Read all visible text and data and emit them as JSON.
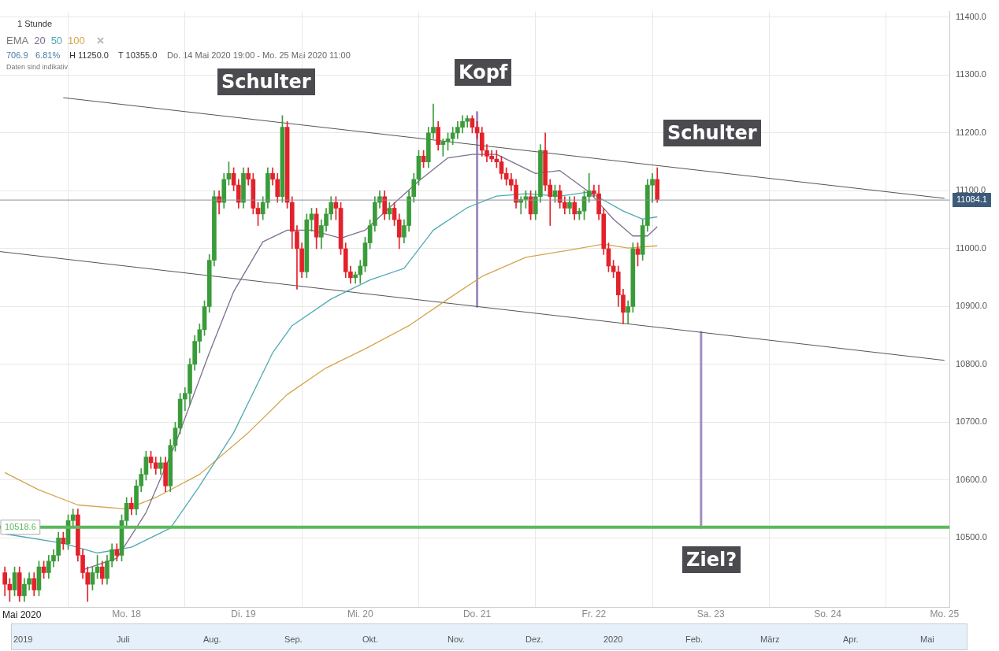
{
  "chart_data": {
    "type": "candlestick",
    "x": [
      "2020-05-16T23:00",
      "2020-05-17T00:00",
      "2020-05-17T01:00",
      "2020-05-17T02:00",
      "2020-05-17T03:00",
      "2020-05-17T04:00",
      "2020-05-17T05:00",
      "2020-05-17T06:00",
      "2020-05-17T07:00",
      "2020-05-17T08:00",
      "2020-05-17T09:00",
      "2020-05-17T10:00",
      "2020-05-17T11:00",
      "2020-05-17T12:00",
      "2020-05-17T13:00",
      "2020-05-17T14:00",
      "2020-05-17T15:00",
      "2020-05-17T16:00",
      "2020-05-17T17:00",
      "2020-05-17T18:00",
      "2020-05-17T19:00",
      "2020-05-17T20:00",
      "2020-05-17T21:00",
      "2020-05-17T22:00",
      "2020-05-17T23:00",
      "2020-05-18T00:00",
      "2020-05-18T01:00",
      "2020-05-18T02:00",
      "2020-05-18T03:00",
      "2020-05-18T04:00",
      "2020-05-18T05:00",
      "2020-05-18T06:00",
      "2020-05-18T07:00",
      "2020-05-18T08:00",
      "2020-05-18T09:00",
      "2020-05-18T10:00",
      "2020-05-18T11:00",
      "2020-05-18T12:00",
      "2020-05-18T13:00",
      "2020-05-18T14:00",
      "2020-05-18T15:00",
      "2020-05-18T16:00",
      "2020-05-18T17:00",
      "2020-05-18T18:00",
      "2020-05-18T19:00",
      "2020-05-18T20:00",
      "2020-05-18T21:00",
      "2020-05-18T22:00",
      "2020-05-18T23:00",
      "2020-05-19T00:00",
      "2020-05-19T01:00",
      "2020-05-19T02:00",
      "2020-05-19T03:00",
      "2020-05-19T04:00",
      "2020-05-19T05:00",
      "2020-05-19T06:00",
      "2020-05-19T07:00",
      "2020-05-19T08:00",
      "2020-05-19T09:00",
      "2020-05-19T10:00",
      "2020-05-19T11:00",
      "2020-05-19T12:00",
      "2020-05-19T13:00",
      "2020-05-19T14:00",
      "2020-05-19T15:00",
      "2020-05-19T16:00",
      "2020-05-19T17:00",
      "2020-05-19T18:00",
      "2020-05-19T19:00",
      "2020-05-19T20:00",
      "2020-05-19T21:00",
      "2020-05-19T22:00",
      "2020-05-19T23:00",
      "2020-05-20T00:00",
      "2020-05-20T01:00",
      "2020-05-20T02:00",
      "2020-05-20T03:00",
      "2020-05-20T04:00",
      "2020-05-20T05:00",
      "2020-05-20T06:00",
      "2020-05-20T07:00",
      "2020-05-20T08:00",
      "2020-05-20T09:00",
      "2020-05-20T10:00",
      "2020-05-20T11:00",
      "2020-05-20T12:00",
      "2020-05-20T13:00",
      "2020-05-20T14:00",
      "2020-05-20T15:00",
      "2020-05-20T16:00",
      "2020-05-20T17:00",
      "2020-05-20T18:00",
      "2020-05-20T19:00",
      "2020-05-20T20:00",
      "2020-05-20T21:00",
      "2020-05-20T22:00",
      "2020-05-20T23:00",
      "2020-05-21T00:00",
      "2020-05-21T01:00",
      "2020-05-21T02:00",
      "2020-05-21T03:00",
      "2020-05-21T04:00",
      "2020-05-21T05:00",
      "2020-05-21T06:00",
      "2020-05-21T07:00",
      "2020-05-21T08:00",
      "2020-05-21T09:00",
      "2020-05-21T10:00",
      "2020-05-21T11:00",
      "2020-05-21T12:00",
      "2020-05-21T13:00",
      "2020-05-21T14:00",
      "2020-05-21T15:00",
      "2020-05-21T16:00",
      "2020-05-21T17:00",
      "2020-05-21T18:00",
      "2020-05-21T19:00",
      "2020-05-21T20:00",
      "2020-05-21T21:00",
      "2020-05-21T22:00",
      "2020-05-21T23:00",
      "2020-05-22T00:00",
      "2020-05-22T01:00",
      "2020-05-22T02:00",
      "2020-05-22T03:00",
      "2020-05-22T04:00",
      "2020-05-22T05:00",
      "2020-05-22T06:00",
      "2020-05-22T07:00",
      "2020-05-22T08:00",
      "2020-05-22T09:00",
      "2020-05-22T10:00",
      "2020-05-22T11:00",
      "2020-05-22T12:00",
      "2020-05-22T13:00"
    ],
    "ohlc": [
      [
        10440,
        10450,
        10400,
        10420
      ],
      [
        10420,
        10430,
        10390,
        10410
      ],
      [
        10410,
        10450,
        10400,
        10440
      ],
      [
        10440,
        10450,
        10390,
        10400
      ],
      [
        10400,
        10430,
        10390,
        10420
      ],
      [
        10420,
        10440,
        10410,
        10430
      ],
      [
        10430,
        10440,
        10400,
        10410
      ],
      [
        10410,
        10460,
        10400,
        10450
      ],
      [
        10450,
        10460,
        10430,
        10440
      ],
      [
        10440,
        10470,
        10430,
        10460
      ],
      [
        10460,
        10480,
        10450,
        10470
      ],
      [
        10470,
        10510,
        10460,
        10500
      ],
      [
        10500,
        10510,
        10480,
        10490
      ],
      [
        10490,
        10540,
        10480,
        10530
      ],
      [
        10530,
        10550,
        10520,
        10540
      ],
      [
        10540,
        10550,
        10460,
        10470
      ],
      [
        10470,
        10480,
        10430,
        10440
      ],
      [
        10440,
        10450,
        10390,
        10420
      ],
      [
        10420,
        10450,
        10410,
        10440
      ],
      [
        10440,
        10470,
        10430,
        10450
      ],
      [
        10450,
        10460,
        10420,
        10430
      ],
      [
        10430,
        10470,
        10420,
        10460
      ],
      [
        10460,
        10490,
        10450,
        10480
      ],
      [
        10480,
        10490,
        10460,
        10470
      ],
      [
        10470,
        10540,
        10460,
        10530
      ],
      [
        10530,
        10570,
        10520,
        10560
      ],
      [
        10560,
        10570,
        10540,
        10550
      ],
      [
        10550,
        10600,
        10540,
        10590
      ],
      [
        10590,
        10620,
        10580,
        10610
      ],
      [
        10610,
        10650,
        10600,
        10640
      ],
      [
        10640,
        10650,
        10620,
        10630
      ],
      [
        10630,
        10640,
        10610,
        10620
      ],
      [
        10620,
        10640,
        10610,
        10630
      ],
      [
        10630,
        10640,
        10580,
        10590
      ],
      [
        10590,
        10670,
        10580,
        10660
      ],
      [
        10660,
        10700,
        10650,
        10690
      ],
      [
        10690,
        10750,
        10680,
        10740
      ],
      [
        10740,
        10760,
        10720,
        10750
      ],
      [
        10750,
        10810,
        10730,
        10800
      ],
      [
        10800,
        10850,
        10790,
        10840
      ],
      [
        10840,
        10870,
        10820,
        10860
      ],
      [
        10860,
        10910,
        10850,
        10900
      ],
      [
        10900,
        10990,
        10890,
        10980
      ],
      [
        10980,
        11100,
        10970,
        11090
      ],
      [
        11090,
        11100,
        11060,
        11080
      ],
      [
        11080,
        11130,
        11070,
        11120
      ],
      [
        11120,
        11150,
        11110,
        11130
      ],
      [
        11130,
        11140,
        11100,
        11110
      ],
      [
        11110,
        11120,
        11070,
        11080
      ],
      [
        11080,
        11140,
        11070,
        11130
      ],
      [
        11130,
        11140,
        11110,
        11120
      ],
      [
        11120,
        11130,
        11060,
        11070
      ],
      [
        11070,
        11080,
        11040,
        11060
      ],
      [
        11060,
        11090,
        11050,
        11080
      ],
      [
        11080,
        11140,
        11070,
        11130
      ],
      [
        11130,
        11140,
        11110,
        11120
      ],
      [
        11120,
        11130,
        11080,
        11090
      ],
      [
        11090,
        11230,
        11080,
        11210
      ],
      [
        11210,
        11220,
        11070,
        11080
      ],
      [
        11080,
        11090,
        11000,
        11030
      ],
      [
        11030,
        11040,
        10930,
        11000
      ],
      [
        11000,
        11010,
        10950,
        10960
      ],
      [
        10960,
        11060,
        10950,
        11050
      ],
      [
        11050,
        11070,
        11030,
        11060
      ],
      [
        11060,
        11070,
        11000,
        11020
      ],
      [
        11020,
        11050,
        11000,
        11040
      ],
      [
        11040,
        11070,
        11030,
        11060
      ],
      [
        11060,
        11090,
        11050,
        11080
      ],
      [
        11080,
        11090,
        11050,
        11070
      ],
      [
        11070,
        11080,
        10990,
        11000
      ],
      [
        11000,
        11010,
        10950,
        10960
      ],
      [
        10960,
        10970,
        10940,
        10950
      ],
      [
        10950,
        10960,
        10940,
        10955
      ],
      [
        10955,
        10980,
        10940,
        10970
      ],
      [
        10970,
        11020,
        10960,
        11010
      ],
      [
        11010,
        11050,
        11000,
        11040
      ],
      [
        11040,
        11090,
        11030,
        11080
      ],
      [
        11080,
        11100,
        11070,
        11090
      ],
      [
        11090,
        11100,
        11050,
        11060
      ],
      [
        11060,
        11080,
        11050,
        11070
      ],
      [
        11070,
        11080,
        11040,
        11050
      ],
      [
        11050,
        11060,
        11000,
        11020
      ],
      [
        11020,
        11050,
        11010,
        11040
      ],
      [
        11040,
        11100,
        11030,
        11090
      ],
      [
        11090,
        11130,
        11080,
        11120
      ],
      [
        11120,
        11170,
        11110,
        11160
      ],
      [
        11160,
        11170,
        11140,
        11150
      ],
      [
        11150,
        11210,
        11140,
        11200
      ],
      [
        11200,
        11250,
        11190,
        11210
      ],
      [
        11210,
        11220,
        11170,
        11180
      ],
      [
        11180,
        11190,
        11160,
        11185
      ],
      [
        11185,
        11200,
        11170,
        11190
      ],
      [
        11190,
        11210,
        11180,
        11200
      ],
      [
        11200,
        11220,
        11190,
        11210
      ],
      [
        11210,
        11230,
        11200,
        11220
      ],
      [
        11220,
        11230,
        11210,
        11225
      ],
      [
        11225,
        11230,
        11200,
        11210
      ],
      [
        11210,
        11220,
        11190,
        11200
      ],
      [
        11200,
        11210,
        11160,
        11170
      ],
      [
        11170,
        11180,
        11150,
        11160
      ],
      [
        11160,
        11170,
        11150,
        11155
      ],
      [
        11155,
        11170,
        11140,
        11150
      ],
      [
        11150,
        11160,
        11120,
        11130
      ],
      [
        11130,
        11140,
        11110,
        11120
      ],
      [
        11120,
        11130,
        11100,
        11110
      ],
      [
        11110,
        11120,
        11070,
        11080
      ],
      [
        11080,
        11090,
        11060,
        11085
      ],
      [
        11085,
        11100,
        11070,
        11090
      ],
      [
        11090,
        11100,
        11050,
        11060
      ],
      [
        11060,
        11100,
        11050,
        11090
      ],
      [
        11090,
        11180,
        11080,
        11170
      ],
      [
        11170,
        11200,
        11100,
        11110
      ],
      [
        11110,
        11120,
        11040,
        11090
      ],
      [
        11090,
        11110,
        11080,
        11100
      ],
      [
        11100,
        11110,
        11070,
        11080
      ],
      [
        11080,
        11090,
        11060,
        11070
      ],
      [
        11070,
        11090,
        11060,
        11080
      ],
      [
        11080,
        11090,
        11050,
        11060
      ],
      [
        11060,
        11070,
        11050,
        11065
      ],
      [
        11065,
        11100,
        11050,
        11090
      ],
      [
        11090,
        11130,
        11080,
        11100
      ],
      [
        11100,
        11110,
        11090,
        11095
      ],
      [
        11095,
        11110,
        11050,
        11060
      ],
      [
        11060,
        11070,
        10990,
        11000
      ],
      [
        11000,
        11010,
        10960,
        10970
      ],
      [
        10970,
        10980,
        10950,
        10960
      ],
      [
        10960,
        10970,
        10900,
        10920
      ],
      [
        10920,
        10930,
        10870,
        10890
      ],
      [
        10890,
        10910,
        10870,
        10900
      ],
      [
        10900,
        11010,
        10890,
        11000
      ],
      [
        11000,
        11010,
        10970,
        10990
      ],
      [
        10990,
        11050,
        10980,
        11040
      ],
      [
        11040,
        11120,
        11030,
        11110
      ],
      [
        11110,
        11130,
        11080,
        11120
      ],
      [
        11120,
        11140,
        11080,
        11085
      ]
    ],
    "colors": [
      "#e3222b",
      "#e3222b",
      "#3a9c3a",
      "#e3222b",
      "#3a9c3a",
      "#3a9c3a",
      "#e3222b",
      "#3a9c3a",
      "#e3222b",
      "#3a9c3a",
      "#3a9c3a",
      "#3a9c3a",
      "#e3222b",
      "#3a9c3a",
      "#3a9c3a",
      "#e3222b",
      "#e3222b",
      "#e3222b",
      "#3a9c3a",
      "#3a9c3a",
      "#e3222b",
      "#3a9c3a",
      "#3a9c3a",
      "#e3222b",
      "#3a9c3a",
      "#3a9c3a",
      "#e3222b",
      "#3a9c3a",
      "#3a9c3a",
      "#3a9c3a",
      "#e3222b",
      "#e3222b",
      "#3a9c3a",
      "#e3222b",
      "#3a9c3a",
      "#3a9c3a",
      "#3a9c3a",
      "#3a9c3a",
      "#3a9c3a",
      "#3a9c3a",
      "#3a9c3a",
      "#3a9c3a",
      "#3a9c3a",
      "#3a9c3a",
      "#e3222b",
      "#3a9c3a",
      "#3a9c3a",
      "#e3222b",
      "#e3222b",
      "#3a9c3a",
      "#e3222b",
      "#e3222b",
      "#e3222b",
      "#3a9c3a",
      "#3a9c3a",
      "#e3222b",
      "#e3222b",
      "#3a9c3a",
      "#e3222b",
      "#e3222b",
      "#e3222b",
      "#e3222b",
      "#3a9c3a",
      "#3a9c3a",
      "#e3222b",
      "#3a9c3a",
      "#3a9c3a",
      "#3a9c3a",
      "#e3222b",
      "#e3222b",
      "#e3222b",
      "#e3222b",
      "#3a9c3a",
      "#3a9c3a",
      "#3a9c3a",
      "#3a9c3a",
      "#3a9c3a",
      "#3a9c3a",
      "#e3222b",
      "#3a9c3a",
      "#e3222b",
      "#e3222b",
      "#3a9c3a",
      "#3a9c3a",
      "#3a9c3a",
      "#3a9c3a",
      "#e3222b",
      "#3a9c3a",
      "#3a9c3a",
      "#e3222b",
      "#3a9c3a",
      "#3a9c3a",
      "#3a9c3a",
      "#3a9c3a",
      "#3a9c3a",
      "#3a9c3a",
      "#e3222b",
      "#e3222b",
      "#e3222b",
      "#e3222b",
      "#e3222b",
      "#e3222b",
      "#e3222b",
      "#e3222b",
      "#e3222b",
      "#e3222b",
      "#3a9c3a",
      "#3a9c3a",
      "#e3222b",
      "#3a9c3a",
      "#3a9c3a",
      "#e3222b",
      "#e3222b",
      "#3a9c3a",
      "#e3222b",
      "#e3222b",
      "#3a9c3a",
      "#e3222b",
      "#3a9c3a",
      "#3a9c3a",
      "#3a9c3a",
      "#e3222b",
      "#e3222b",
      "#e3222b",
      "#e3222b",
      "#e3222b",
      "#e3222b",
      "#e3222b",
      "#3a9c3a",
      "#3a9c3a",
      "#e3222b",
      "#3a9c3a",
      "#3a9c3a",
      "#3a9c3a",
      "#e3222b"
    ],
    "series": [
      {
        "name": "20",
        "type": "line",
        "color": "#7d6f8f",
        "x": [
          "2020-05-17T15:00",
          "2020-05-17T22:00",
          "2020-05-18T04:00",
          "2020-05-18T10:00",
          "2020-05-18T17:00",
          "2020-05-18T22:00",
          "2020-05-19T04:00",
          "2020-05-19T09:00",
          "2020-05-19T14:00",
          "2020-05-19T20:00",
          "2020-05-20T01:00",
          "2020-05-20T06:00",
          "2020-05-20T12:00",
          "2020-05-20T18:00",
          "2020-05-20T23:00",
          "2020-05-21T04:00",
          "2020-05-21T12:00",
          "2020-05-21T17:00",
          "2020-05-21T23:00",
          "2020-05-22T04:00",
          "2020-05-22T08:00",
          "2020-05-22T11:00",
          "2020-05-22T13:00"
        ],
        "values": [
          10445,
          10465,
          10544,
          10662,
          10820,
          10926,
          11012,
          11032,
          11032,
          11018,
          11032,
          11071,
          11117,
          11157,
          11163,
          11163,
          11130,
          11135,
          11098,
          11051,
          11022,
          11022,
          11038
        ]
      },
      {
        "name": "50",
        "type": "line",
        "color": "#4fa9b3",
        "x": [
          "2020-05-16T23:00",
          "2020-05-17T11:00",
          "2020-05-17T18:00",
          "2020-05-18T01:00",
          "2020-05-18T09:00",
          "2020-05-18T15:00",
          "2020-05-18T22:00",
          "2020-05-19T06:00",
          "2020-05-19T10:00",
          "2020-05-19T18:00",
          "2020-05-20T02:00",
          "2020-05-20T09:00",
          "2020-05-20T15:00",
          "2020-05-20T22:00",
          "2020-05-21T04:00",
          "2020-05-21T10:00",
          "2020-05-21T17:00",
          "2020-05-21T23:00",
          "2020-05-22T06:00",
          "2020-05-22T10:00",
          "2020-05-22T13:00"
        ],
        "values": [
          10507,
          10491,
          10474,
          10484,
          10517,
          10590,
          10682,
          10820,
          10867,
          10913,
          10946,
          10966,
          11032,
          11071,
          11091,
          11095,
          11091,
          11098,
          11065,
          11051,
          11055
        ]
      },
      {
        "name": "100",
        "type": "line",
        "color": "#d4a54c",
        "x": [
          "2020-05-16T23:00",
          "2020-05-17T06:00",
          "2020-05-17T14:00",
          "2020-05-18T00:00",
          "2020-05-18T06:00",
          "2020-05-18T15:00",
          "2020-05-19T01:00",
          "2020-05-19T09:00",
          "2020-05-19T17:00",
          "2020-05-20T01:00",
          "2020-05-20T10:00",
          "2020-05-20T18:00",
          "2020-05-21T01:00",
          "2020-05-21T10:00",
          "2020-05-21T20:00",
          "2020-05-22T02:00",
          "2020-05-22T07:00",
          "2020-05-22T13:00"
        ],
        "values": [
          10613,
          10583,
          10557,
          10550,
          10570,
          10610,
          10682,
          10748,
          10794,
          10827,
          10867,
          10913,
          10952,
          10985,
          10999,
          11008,
          11001,
          11005
        ]
      },
      {
        "type": "line",
        "color": "#555555",
        "x": [
          "2020-05-17T11:00",
          "2020-05-25T00:00"
        ],
        "values": [
          11261,
          11087
        ]
      },
      {
        "type": "line",
        "color": "#555555",
        "x": [
          "2020-05-16T22:00",
          "2020-05-25T00:00"
        ],
        "values": [
          10995,
          10807
        ]
      },
      {
        "type": "line",
        "color": "#a08fc0",
        "x": [
          "2020-05-21T00:00",
          "2020-05-21T00:00"
        ],
        "values": [
          11236,
          10900
        ]
      },
      {
        "type": "line",
        "color": "#a08fc0",
        "x": [
          "2020-05-22T22:00",
          "2020-05-22T22:00"
        ],
        "values": [
          10856,
          10518
        ]
      }
    ],
    "xlim": [
      "2020-05-16T22:00",
      "2020-05-25T01:00"
    ],
    "xticks": [
      {
        "value": "2020-05-18",
        "label": "Mo. 18"
      },
      {
        "value": "2020-05-19",
        "label": "Di. 19"
      },
      {
        "value": "2020-05-20",
        "label": "Mi. 20"
      },
      {
        "value": "2020-05-21",
        "label": "Do. 21"
      },
      {
        "value": "2020-05-22",
        "label": "Fr. 22"
      },
      {
        "value": "2020-05-23",
        "label": "Sa. 23"
      },
      {
        "value": "2020-05-24",
        "label": "So. 24"
      },
      {
        "value": "2020-05-25",
        "label": "Mo. 25"
      }
    ],
    "ylim": [
      10380,
      11410
    ],
    "yticks": [
      {
        "value": 10500,
        "label": "10500.0"
      },
      {
        "value": 10600,
        "label": "10600.0"
      },
      {
        "value": 10700,
        "label": "10700.0"
      },
      {
        "value": 10800,
        "label": "10800.0"
      },
      {
        "value": 10900,
        "label": "10900.0"
      },
      {
        "value": 11000,
        "label": "11000.0"
      },
      {
        "value": 11100,
        "label": "11100.0"
      },
      {
        "value": 11200,
        "label": "11200.0"
      },
      {
        "value": 11300,
        "label": "11300.0"
      },
      {
        "value": 11400,
        "label": "11400.0"
      }
    ],
    "ref_lines": [
      {
        "axis": "y",
        "value": 11084.1,
        "label": "11084.1",
        "color": "#8a9099"
      },
      {
        "axis": "y",
        "value": 10518.6,
        "label": "10518.6",
        "color": "#5cb85c"
      }
    ],
    "grid": true,
    "legend": "top left",
    "legend_title": "EMA",
    "marker": "none",
    "annotations": [
      "Schulter",
      "Kopf",
      "Schulter",
      "Ziel?",
      "1 Stunde",
      "706.9",
      "6.81%",
      "H 11250.0",
      "T 10355.0",
      "Do. 14 Mai 2020 19:00 - Mo. 25 Mai 2020 11:00",
      "Daten sind indikativ",
      "Mai 2020",
      "2019",
      "Juli",
      "Aug.",
      "Sep.",
      "Okt.",
      "Nov.",
      "Dez.",
      "2020",
      "Feb.",
      "März",
      "Apr.",
      "Mai"
    ]
  }
}
